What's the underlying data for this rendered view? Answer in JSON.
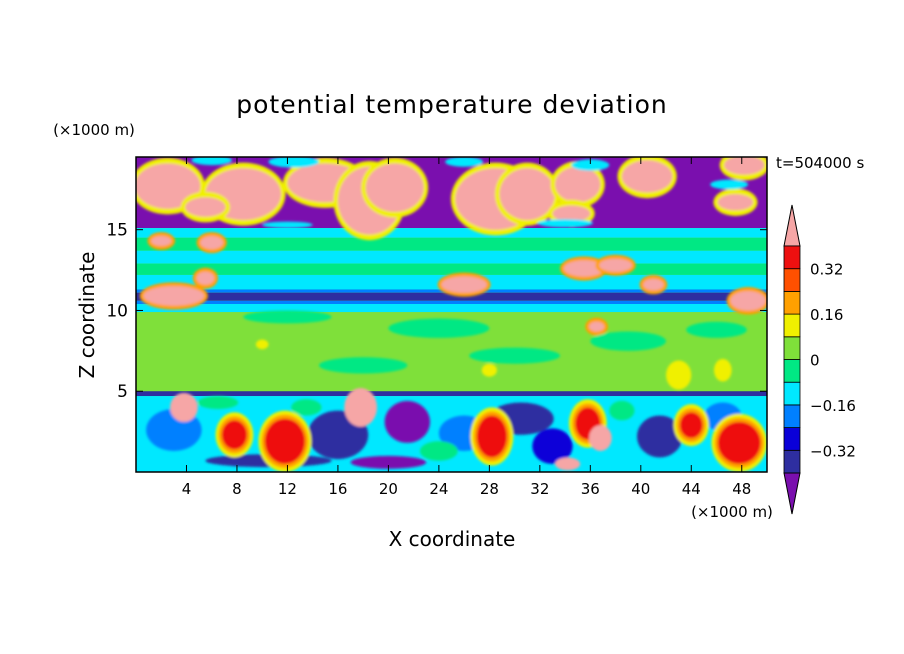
{
  "chart_data": {
    "type": "heatmap",
    "title": "potential temperature deviation",
    "time_label": "t=504000 s",
    "xlabel": "X coordinate",
    "ylabel": "Z coordinate",
    "x_unit": "(×1000 m)",
    "y_unit": "(×1000 m)",
    "xlim": [
      0,
      50
    ],
    "ylim": [
      0,
      19.5
    ],
    "x_ticks": [
      4,
      8,
      12,
      16,
      20,
      24,
      28,
      32,
      36,
      40,
      44,
      48
    ],
    "y_ticks": [
      5,
      10,
      15
    ],
    "colorbar": {
      "levels": [
        -0.4,
        -0.32,
        -0.24,
        -0.16,
        -0.08,
        0,
        0.08,
        0.16,
        0.24,
        0.32,
        0.4
      ],
      "tick_labels": [
        "0.32",
        "0.16",
        "0",
        "-0.16",
        "-0.32"
      ],
      "tick_values": [
        0.32,
        0.16,
        0,
        -0.16,
        -0.32
      ],
      "colors": [
        "#7a0fae",
        "#2e2ea0",
        "#0a00d8",
        "#0080ff",
        "#00e8ff",
        "#00e884",
        "#7fe03a",
        "#f0f000",
        "#ffa000",
        "#ff5000",
        "#ee1010",
        "#f6a6a6"
      ],
      "extend": "both"
    },
    "grid": false
  }
}
